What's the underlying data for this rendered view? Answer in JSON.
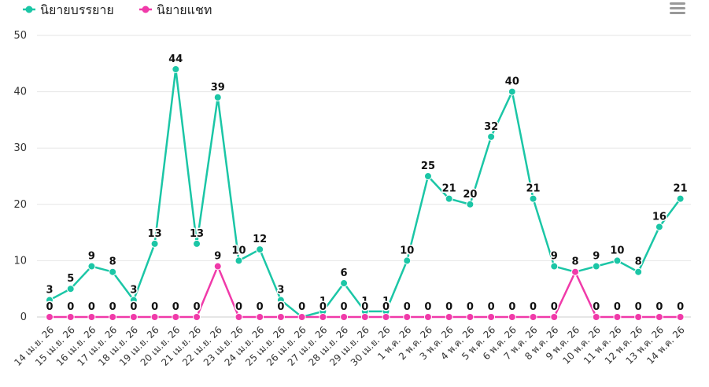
{
  "chart_data": {
    "type": "line",
    "categories": [
      "14 เม.ย. 26",
      "15 เม.ย. 26",
      "16 เม.ย. 26",
      "17 เม.ย. 26",
      "18 เม.ย. 26",
      "19 เม.ย. 26",
      "20 เม.ย. 26",
      "21 เม.ย. 26",
      "22 เม.ย. 26",
      "23 เม.ย. 26",
      "24 เม.ย. 26",
      "25 เม.ย. 26",
      "26 เม.ย. 26",
      "27 เม.ย. 26",
      "28 เม.ย. 26",
      "29 เม.ย. 26",
      "30 เม.ย. 26",
      "1 พ.ค. 26",
      "2 พ.ค. 26",
      "3 พ.ค. 26",
      "4 พ.ค. 26",
      "5 พ.ค. 26",
      "6 พ.ค. 26",
      "7 พ.ค. 26",
      "8 พ.ค. 26",
      "9 พ.ค. 26",
      "10 พ.ค. 26",
      "11 พ.ค. 26",
      "12 พ.ค. 26",
      "13 พ.ค. 26",
      "14 พ.ค. 26"
    ],
    "series": [
      {
        "name": "นิยายบรรยาย",
        "color": "#1bc6a6",
        "values": [
          3,
          5,
          9,
          8,
          3,
          13,
          44,
          13,
          39,
          10,
          12,
          3,
          0,
          1,
          6,
          1,
          1,
          10,
          25,
          21,
          20,
          32,
          40,
          21,
          9,
          8,
          9,
          10,
          8,
          16,
          21
        ]
      },
      {
        "name": "นิยายแชท",
        "color": "#f03aa9",
        "values": [
          0,
          0,
          0,
          0,
          0,
          0,
          0,
          0,
          9,
          0,
          0,
          0,
          0,
          0,
          0,
          0,
          0,
          0,
          0,
          0,
          0,
          0,
          0,
          0,
          0,
          8,
          0,
          0,
          0,
          0,
          0
        ]
      }
    ],
    "yticks": [
      0,
      10,
      20,
      30,
      40,
      50
    ],
    "ylim": [
      0,
      50
    ],
    "grid": true,
    "legend_position": "top-left",
    "title": "",
    "xlabel": "",
    "ylabel": ""
  },
  "toolbar": {
    "menu_icon": "hamburger-menu-icon"
  }
}
